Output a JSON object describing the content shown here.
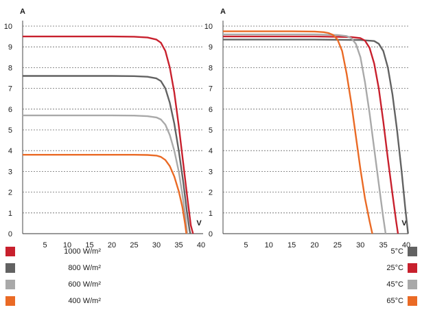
{
  "chart_data": [
    {
      "type": "line",
      "title": "",
      "xlabel": "V",
      "ylabel": "A",
      "xlim": [
        0,
        40
      ],
      "ylim": [
        0,
        10
      ],
      "xticks": [
        5,
        10,
        15,
        20,
        25,
        30,
        35,
        40
      ],
      "yticks": [
        0,
        1,
        2,
        3,
        4,
        5,
        6,
        7,
        8,
        9,
        10
      ],
      "grid": "horizontal dotted",
      "legend_position": "bottom-left",
      "series": [
        {
          "name": "1000 W/m²",
          "color": "#c8202d",
          "points": [
            [
              0,
              9.5
            ],
            [
              10,
              9.5
            ],
            [
              20,
              9.5
            ],
            [
              25,
              9.49
            ],
            [
              28,
              9.45
            ],
            [
              30,
              9.35
            ],
            [
              31,
              9.2
            ],
            [
              32,
              8.8
            ],
            [
              33,
              8.0
            ],
            [
              34,
              6.8
            ],
            [
              35,
              5.2
            ],
            [
              36,
              3.4
            ],
            [
              37,
              1.6
            ],
            [
              37.7,
              0.4
            ],
            [
              38.2,
              0
            ]
          ]
        },
        {
          "name": "800 W/m²",
          "color": "#626262",
          "points": [
            [
              0,
              7.6
            ],
            [
              10,
              7.6
            ],
            [
              20,
              7.6
            ],
            [
              25,
              7.59
            ],
            [
              28,
              7.56
            ],
            [
              30,
              7.48
            ],
            [
              31,
              7.35
            ],
            [
              32,
              7.0
            ],
            [
              33,
              6.3
            ],
            [
              34,
              5.3
            ],
            [
              35,
              4.0
            ],
            [
              36,
              2.5
            ],
            [
              36.8,
              1.1
            ],
            [
              37.4,
              0.2
            ],
            [
              37.6,
              0
            ]
          ]
        },
        {
          "name": "600 W/m²",
          "color": "#a9a9a9",
          "points": [
            [
              0,
              5.7
            ],
            [
              10,
              5.7
            ],
            [
              20,
              5.7
            ],
            [
              25,
              5.69
            ],
            [
              28,
              5.66
            ],
            [
              30,
              5.6
            ],
            [
              31,
              5.5
            ],
            [
              32,
              5.25
            ],
            [
              33,
              4.75
            ],
            [
              34,
              4.0
            ],
            [
              35,
              3.0
            ],
            [
              35.8,
              1.9
            ],
            [
              36.5,
              0.8
            ],
            [
              36.9,
              0
            ]
          ]
        },
        {
          "name": "400 W/m²",
          "color": "#ea6a25",
          "points": [
            [
              0,
              3.8
            ],
            [
              10,
              3.8
            ],
            [
              20,
              3.8
            ],
            [
              25,
              3.8
            ],
            [
              28,
              3.79
            ],
            [
              30,
              3.76
            ],
            [
              31,
              3.7
            ],
            [
              32,
              3.55
            ],
            [
              33,
              3.25
            ],
            [
              34,
              2.75
            ],
            [
              35,
              2.05
            ],
            [
              35.8,
              1.3
            ],
            [
              36.4,
              0.5
            ],
            [
              36.7,
              0
            ]
          ]
        }
      ]
    },
    {
      "type": "line",
      "title": "",
      "xlabel": "V",
      "ylabel": "A",
      "xlim": [
        0,
        40
      ],
      "ylim": [
        0,
        10
      ],
      "xticks": [
        5,
        10,
        15,
        20,
        25,
        30,
        35,
        40
      ],
      "yticks": [
        0,
        1,
        2,
        3,
        4,
        5,
        6,
        7,
        8,
        9,
        10
      ],
      "grid": "horizontal dotted",
      "legend_position": "bottom-right",
      "series": [
        {
          "name": "5°C",
          "color": "#626262",
          "points": [
            [
              0,
              9.35
            ],
            [
              20,
              9.35
            ],
            [
              30,
              9.33
            ],
            [
              33,
              9.28
            ],
            [
              34,
              9.15
            ],
            [
              35,
              8.8
            ],
            [
              36,
              8.0
            ],
            [
              37,
              6.7
            ],
            [
              38,
              5.0
            ],
            [
              39,
              3.0
            ],
            [
              39.8,
              1.2
            ],
            [
              40.4,
              0
            ]
          ]
        },
        {
          "name": "25°C",
          "color": "#c8202d",
          "points": [
            [
              0,
              9.5
            ],
            [
              20,
              9.5
            ],
            [
              28,
              9.47
            ],
            [
              30,
              9.42
            ],
            [
              31,
              9.3
            ],
            [
              32,
              8.95
            ],
            [
              33,
              8.2
            ],
            [
              34,
              7.0
            ],
            [
              35,
              5.4
            ],
            [
              36,
              3.6
            ],
            [
              37,
              1.9
            ],
            [
              37.8,
              0.6
            ],
            [
              38.2,
              0
            ]
          ]
        },
        {
          "name": "45°C",
          "color": "#a9a9a9",
          "points": [
            [
              0,
              9.6
            ],
            [
              20,
              9.6
            ],
            [
              25,
              9.57
            ],
            [
              27,
              9.52
            ],
            [
              28,
              9.42
            ],
            [
              29,
              9.15
            ],
            [
              30,
              8.5
            ],
            [
              31,
              7.3
            ],
            [
              32,
              5.8
            ],
            [
              33,
              4.1
            ],
            [
              34,
              2.4
            ],
            [
              34.9,
              0.9
            ],
            [
              35.5,
              0
            ]
          ]
        },
        {
          "name": "65°C",
          "color": "#ea6a25",
          "points": [
            [
              0,
              9.75
            ],
            [
              15,
              9.75
            ],
            [
              20,
              9.74
            ],
            [
              22,
              9.71
            ],
            [
              23,
              9.67
            ],
            [
              24,
              9.58
            ],
            [
              25,
              9.35
            ],
            [
              26,
              8.8
            ],
            [
              27,
              7.7
            ],
            [
              28,
              6.3
            ],
            [
              29,
              4.7
            ],
            [
              30,
              3.1
            ],
            [
              31,
              1.7
            ],
            [
              32,
              0.6
            ],
            [
              32.6,
              0
            ]
          ]
        }
      ]
    }
  ]
}
